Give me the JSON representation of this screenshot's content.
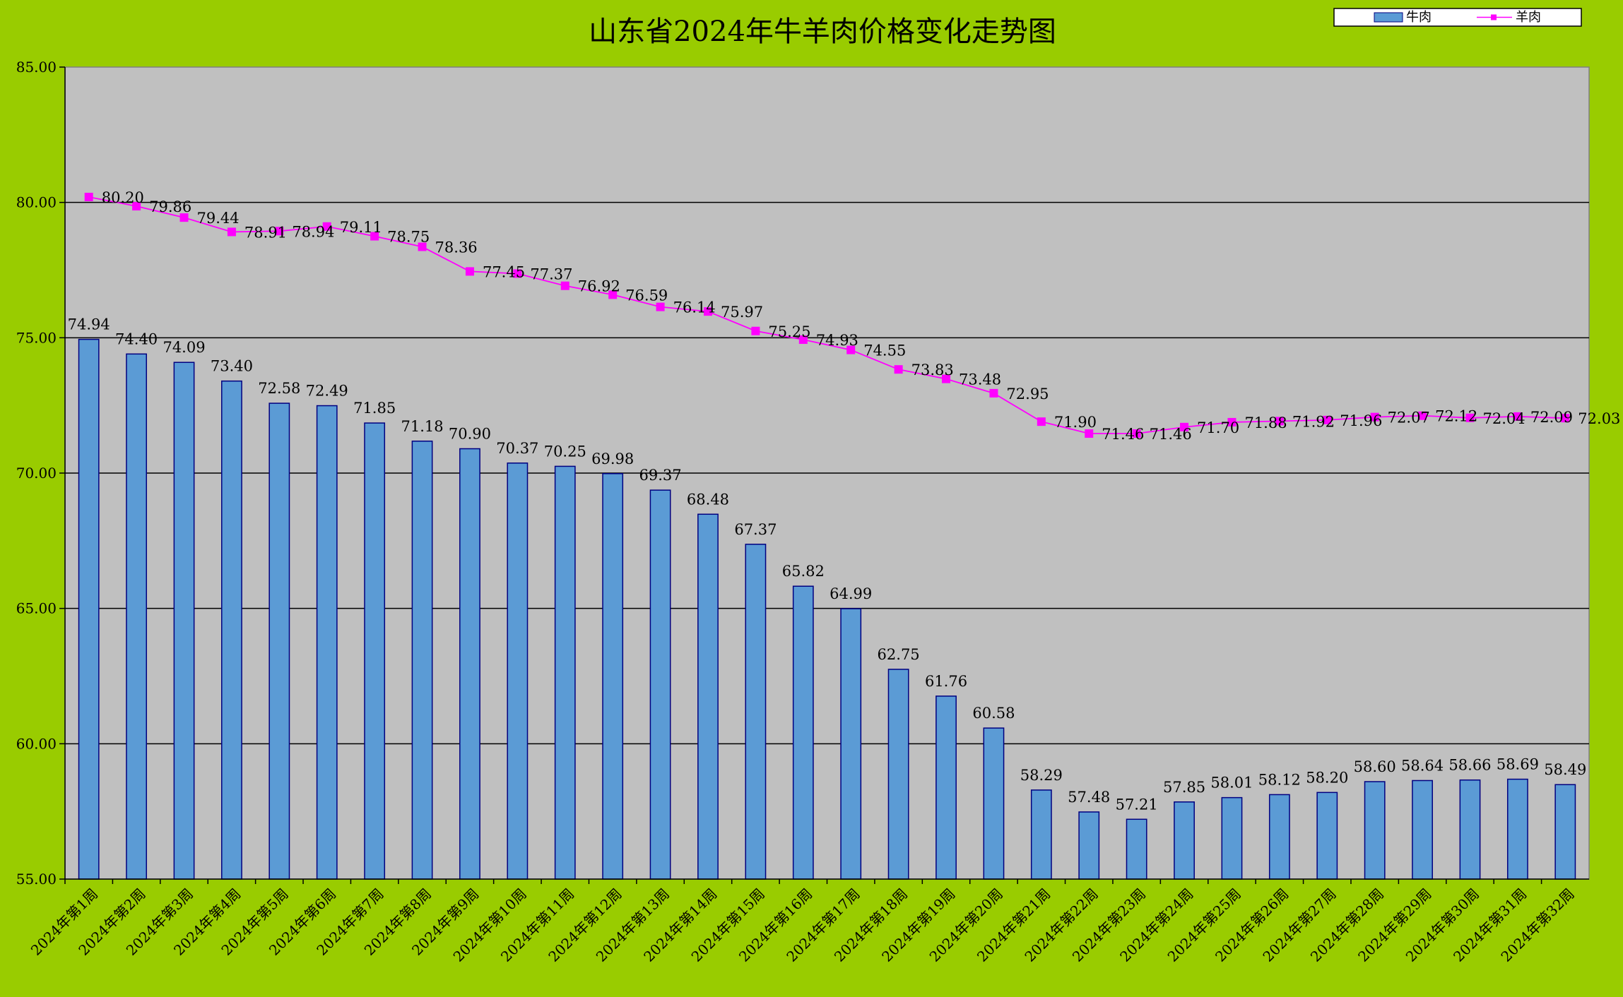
{
  "chart_data": {
    "type": "bar",
    "title": "山东省2024年牛羊肉价格变化走势图",
    "xlabel": "",
    "ylabel": "",
    "ylim": [
      55,
      85
    ],
    "yticks": [
      55,
      60,
      65,
      70,
      75,
      80,
      85
    ],
    "ytick_labels": [
      "55.00",
      "60.00",
      "65.00",
      "70.00",
      "75.00",
      "80.00",
      "85.00"
    ],
    "grid": true,
    "legend_position": "top-right",
    "colors": {
      "background": "#99cc00",
      "plot_area": "#c0c0c0",
      "bar_fill": "#5b9bd5",
      "bar_stroke": "#000080",
      "line": "#ff00ff"
    },
    "categories": [
      "2024年第1周",
      "2024年第2周",
      "2024年第3周",
      "2024年第4周",
      "2024年第5周",
      "2024年第6周",
      "2024年第7周",
      "2024年第8周",
      "2024年第9周",
      "2024年第10周",
      "2024年第11周",
      "2024年第12周",
      "2024年第13周",
      "2024年第14周",
      "2024年第15周",
      "2024年第16周",
      "2024年第17周",
      "2024年第18周",
      "2024年第19周",
      "2024年第20周",
      "2024年第21周",
      "2024年第22周",
      "2024年第23周",
      "2024年第24周",
      "2024年第25周",
      "2024年第26周",
      "2024年第27周",
      "2024年第28周",
      "2024年第29周",
      "2024年第30周",
      "2024年第31周",
      "2024年第32周"
    ],
    "series": [
      {
        "name": "牛肉",
        "type": "bar",
        "values": [
          74.94,
          74.4,
          74.09,
          73.4,
          72.58,
          72.49,
          71.85,
          71.18,
          70.9,
          70.37,
          70.25,
          69.98,
          69.37,
          68.48,
          67.37,
          65.82,
          64.99,
          62.75,
          61.76,
          60.58,
          58.29,
          57.48,
          57.21,
          57.85,
          58.01,
          58.12,
          58.2,
          58.6,
          58.64,
          58.66,
          58.69,
          58.49
        ],
        "labels": [
          "74.94",
          "74.40",
          "74.09",
          "73.40",
          "72.58",
          "72.49",
          "71.85",
          "71.18",
          "70.90",
          "70.37",
          "70.25",
          "69.98",
          "69.37",
          "68.48",
          "67.37",
          "65.82",
          "64.99",
          "62.75",
          "61.76",
          "60.58",
          "58.29",
          "57.48",
          "57.21",
          "57.85",
          "58.01",
          "58.12",
          "58.20",
          "58.60",
          "58.64",
          "58.66",
          "58.69",
          "58.49"
        ]
      },
      {
        "name": "羊肉",
        "type": "line",
        "values": [
          80.2,
          79.86,
          79.44,
          78.91,
          78.94,
          79.11,
          78.75,
          78.36,
          77.45,
          77.37,
          76.92,
          76.59,
          76.14,
          75.97,
          75.25,
          74.93,
          74.55,
          73.83,
          73.48,
          72.95,
          71.9,
          71.46,
          71.46,
          71.7,
          71.88,
          71.92,
          71.96,
          72.07,
          72.12,
          72.04,
          72.09,
          72.03
        ],
        "labels": [
          "80.20",
          "79.86",
          "79.44",
          "78.91",
          "78.94",
          "79.11",
          "78.75",
          "78.36",
          "77.45",
          "77.37",
          "76.92",
          "76.59",
          "76.14",
          "75.97",
          "75.25",
          "74.93",
          "74.55",
          "73.83",
          "73.48",
          "72.95",
          "71.90",
          "71.46",
          "71.46",
          "71.70",
          "71.88",
          "71.92",
          "71.96",
          "72.07",
          "72.12",
          "72.04",
          "72.09",
          "72.03"
        ]
      }
    ]
  }
}
